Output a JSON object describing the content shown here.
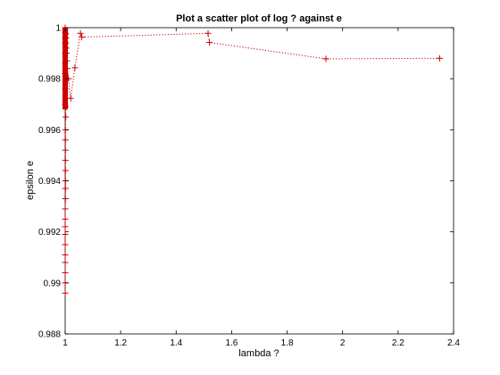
{
  "chart_data": {
    "type": "scatter",
    "title": "Plot a scatter plot of log ? against e",
    "xlabel": "lambda ?",
    "ylabel": "epsilon e",
    "xlim": [
      1,
      2.4
    ],
    "ylim": [
      0.988,
      1.0
    ],
    "xticks": [
      1,
      1.2,
      1.4,
      1.6,
      1.8,
      2,
      2.2,
      2.4
    ],
    "xtick_labels": [
      "1",
      "1.2",
      "1.4",
      "1.6",
      "1.8",
      "2",
      "2.2",
      "2.4"
    ],
    "yticks": [
      0.988,
      0.99,
      0.992,
      0.994,
      0.996,
      0.998,
      1.0
    ],
    "ytick_labels": [
      "0.988",
      "0.99",
      "0.992",
      "0.994",
      "0.996",
      "0.998",
      "1"
    ],
    "grid": false,
    "marker": "+",
    "line_style": "dotted",
    "color": "#cc0000",
    "series": [
      {
        "x": [
          2.35,
          1.94,
          1.52,
          1.515,
          1.06,
          1.055,
          1.035,
          1.02,
          1.012,
          1.008,
          1.006,
          1.005,
          1.004,
          1.003,
          1.003,
          1.002,
          1.002,
          1.002,
          1.001,
          1.001,
          1.001,
          1.001,
          1.001,
          1.001,
          1.001,
          1.001,
          1.0,
          1.0,
          1.0,
          1.0,
          1.0,
          1.0,
          1.0,
          1.0,
          1.0,
          1.0,
          1.0,
          1.0,
          1.0,
          1.0,
          1.0,
          1.0,
          1.0,
          1.0,
          1.0,
          1.0
        ],
        "y": [
          0.9988,
          0.99878,
          0.99942,
          0.99978,
          0.99963,
          0.99978,
          0.99843,
          0.99723,
          0.998,
          0.9984,
          0.9987,
          0.999,
          0.9992,
          0.9994,
          0.9996,
          0.99975,
          0.9969,
          0.9965,
          0.996,
          0.9956,
          0.9952,
          0.9948,
          0.9944,
          0.994,
          0.9937,
          0.9933,
          0.9929,
          0.9925,
          0.9922,
          0.9919,
          0.9915,
          0.9911,
          0.9908,
          0.9904,
          0.99,
          0.9896,
          0.997,
          0.9976,
          0.9982,
          0.9986,
          0.999,
          0.9994,
          0.9996,
          0.9998,
          0.9999,
          1.0
        ]
      }
    ]
  }
}
